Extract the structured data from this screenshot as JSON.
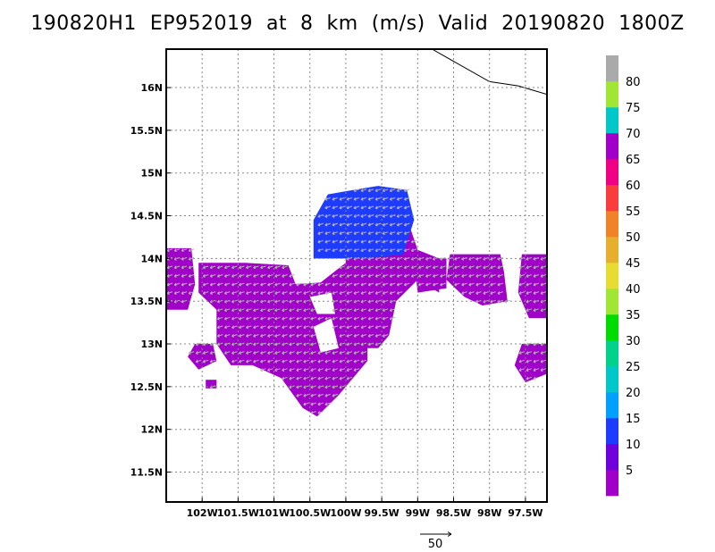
{
  "chart_data": {
    "type": "heatmap",
    "title": "190820H1  EP952019  at  8  km  (m/s)  Valid  20190820  1800Z",
    "xlim": [
      -102.5,
      -97.2
    ],
    "ylim": [
      11.15,
      16.45
    ],
    "x_ticks": [
      -102,
      -101.5,
      -101,
      -100.5,
      -100,
      -99.5,
      -99,
      -98.5,
      -98,
      -97.5
    ],
    "x_tick_labels": [
      "102W",
      "101.5W",
      "101W",
      "100.5W",
      "100W",
      "99.5W",
      "99W",
      "98.5W",
      "98W",
      "97.5W"
    ],
    "y_ticks": [
      11.5,
      12,
      12.5,
      13,
      13.5,
      14,
      14.5,
      15,
      15.5,
      16
    ],
    "y_tick_labels": [
      "11.5N",
      "12N",
      "12.5N",
      "13N",
      "13.5N",
      "14N",
      "14.5N",
      "15N",
      "15.5N",
      "16N"
    ],
    "grid": true,
    "colorbar": {
      "levels": [
        5,
        10,
        15,
        20,
        25,
        30,
        35,
        40,
        45,
        50,
        55,
        60,
        65,
        70,
        75,
        80
      ],
      "colors": [
        "#a000c8",
        "#6e00dc",
        "#1e3cff",
        "#00a0ff",
        "#00c8c8",
        "#00d28c",
        "#00dc00",
        "#a0e632",
        "#e6dc32",
        "#e6af2d",
        "#f08228",
        "#fa3c3c",
        "#f00082",
        "#a000c8",
        "#00c8c8",
        "#a0e632",
        "#aaaaaa"
      ]
    },
    "vector_reference": {
      "label": "50"
    },
    "regions": [
      {
        "name": "main",
        "dominant_speed_bin": "5",
        "outline": [
          [
            -102.05,
            13.95
          ],
          [
            -101.4,
            13.95
          ],
          [
            -100.8,
            13.92
          ],
          [
            -100.7,
            13.7
          ],
          [
            -100.35,
            13.72
          ],
          [
            -100.0,
            13.95
          ],
          [
            -100.0,
            14.6
          ],
          [
            -99.6,
            14.75
          ],
          [
            -99.2,
            14.6
          ],
          [
            -99.0,
            14.1
          ],
          [
            -98.7,
            14.0
          ],
          [
            -98.7,
            13.6
          ],
          [
            -99.0,
            13.75
          ],
          [
            -99.3,
            13.5
          ],
          [
            -99.4,
            13.1
          ],
          [
            -99.6,
            12.9
          ],
          [
            -99.8,
            12.7
          ],
          [
            -100.1,
            12.4
          ],
          [
            -100.4,
            12.15
          ],
          [
            -100.6,
            12.25
          ],
          [
            -100.9,
            12.6
          ],
          [
            -101.3,
            12.75
          ],
          [
            -101.6,
            12.75
          ],
          [
            -101.8,
            13.0
          ],
          [
            -101.8,
            13.4
          ],
          [
            -102.05,
            13.6
          ]
        ]
      },
      {
        "name": "north-blue",
        "dominant_speed_bin": "10",
        "outline": [
          [
            -100.45,
            14.0
          ],
          [
            -100.45,
            14.45
          ],
          [
            -100.25,
            14.75
          ],
          [
            -99.9,
            14.8
          ],
          [
            -99.55,
            14.85
          ],
          [
            -99.15,
            14.8
          ],
          [
            -99.05,
            14.45
          ],
          [
            -99.2,
            14.05
          ],
          [
            -99.7,
            14.0
          ]
        ]
      },
      {
        "name": "west-edge",
        "dominant_speed_bin": "5",
        "outline": [
          [
            -102.5,
            14.12
          ],
          [
            -102.15,
            14.12
          ],
          [
            -102.1,
            13.7
          ],
          [
            -102.2,
            13.4
          ],
          [
            -102.5,
            13.4
          ]
        ]
      },
      {
        "name": "west-low",
        "dominant_speed_bin": "5",
        "outline": [
          [
            -102.1,
            13.0
          ],
          [
            -101.85,
            13.0
          ],
          [
            -101.8,
            12.8
          ],
          [
            -102.05,
            12.7
          ],
          [
            -102.2,
            12.85
          ]
        ]
      },
      {
        "name": "east-block",
        "dominant_speed_bin": "5",
        "outline": [
          [
            -98.55,
            14.05
          ],
          [
            -97.85,
            14.05
          ],
          [
            -97.8,
            13.85
          ],
          [
            -97.75,
            13.5
          ],
          [
            -98.1,
            13.45
          ],
          [
            -98.35,
            13.55
          ],
          [
            -98.6,
            13.75
          ]
        ]
      },
      {
        "name": "east-edge",
        "dominant_speed_bin": "5",
        "outline": [
          [
            -97.55,
            14.05
          ],
          [
            -97.2,
            14.05
          ],
          [
            -97.2,
            13.3
          ],
          [
            -97.45,
            13.3
          ],
          [
            -97.6,
            13.6
          ]
        ]
      },
      {
        "name": "east-low",
        "dominant_speed_bin": "5",
        "outline": [
          [
            -97.55,
            13.0
          ],
          [
            -97.2,
            13.0
          ],
          [
            -97.2,
            12.65
          ],
          [
            -97.5,
            12.55
          ],
          [
            -97.65,
            12.75
          ]
        ]
      },
      {
        "name": "mid-strip",
        "dominant_speed_bin": "5",
        "outline": [
          [
            -99.05,
            14.0
          ],
          [
            -98.6,
            14.0
          ],
          [
            -98.6,
            13.65
          ],
          [
            -99.0,
            13.6
          ]
        ]
      },
      {
        "name": "sw-bits",
        "dominant_speed_bin": "5",
        "outline": [
          [
            -101.95,
            12.58
          ],
          [
            -101.8,
            12.58
          ],
          [
            -101.8,
            12.48
          ],
          [
            -101.95,
            12.48
          ]
        ]
      }
    ],
    "holes": [
      {
        "outline": [
          [
            -100.5,
            13.55
          ],
          [
            -100.2,
            13.6
          ],
          [
            -100.15,
            13.35
          ],
          [
            -100.4,
            13.35
          ]
        ]
      },
      {
        "outline": [
          [
            -100.45,
            13.2
          ],
          [
            -100.2,
            13.3
          ],
          [
            -100.1,
            12.95
          ],
          [
            -100.35,
            12.9
          ]
        ]
      },
      {
        "outline": [
          [
            -99.7,
            12.95
          ],
          [
            -99.5,
            12.95
          ],
          [
            -99.45,
            12.75
          ],
          [
            -99.7,
            12.8
          ]
        ]
      }
    ],
    "coastline": [
      [
        -98.8,
        16.45
      ],
      [
        -98.0,
        16.07
      ],
      [
        -97.6,
        16.02
      ],
      [
        -97.2,
        15.92
      ]
    ]
  }
}
